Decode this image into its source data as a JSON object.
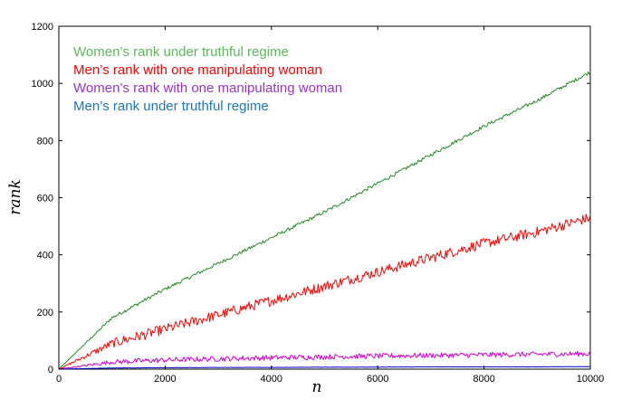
{
  "chart_data": {
    "type": "line",
    "title": "",
    "xlabel": "n",
    "ylabel": "rank",
    "xlim": [
      0,
      10000
    ],
    "ylim": [
      0,
      1200
    ],
    "x_ticks": [
      0,
      2000,
      4000,
      6000,
      8000,
      10000
    ],
    "y_ticks": [
      0,
      200,
      400,
      600,
      800,
      1000,
      1200
    ],
    "grid": false,
    "legend_position": "top-left",
    "series": [
      {
        "name": "Women’s rank under truthful  regime",
        "color": "#228b22",
        "legend_color": "#5cb85c",
        "noise": 6,
        "x": [
          0,
          1000,
          2000,
          3000,
          4000,
          5000,
          6000,
          7000,
          8000,
          9000,
          10000
        ],
        "values": [
          0,
          180,
          280,
          370,
          460,
          550,
          650,
          750,
          850,
          940,
          1040
        ]
      },
      {
        "name": "Men’s rank with one manipulating woman",
        "color": "#ff0000",
        "legend_color": "#ff0000",
        "noise": 18,
        "x": [
          0,
          1000,
          2000,
          3000,
          4000,
          5000,
          6000,
          7000,
          8000,
          9000,
          10000
        ],
        "values": [
          0,
          90,
          140,
          190,
          240,
          290,
          340,
          390,
          440,
          480,
          530
        ]
      },
      {
        "name": "Women’s rank with one manipulating woman",
        "color": "#cc00cc",
        "legend_color": "#9933cc",
        "noise": 9,
        "x": [
          0,
          1000,
          2000,
          3000,
          4000,
          5000,
          6000,
          7000,
          8000,
          9000,
          10000
        ],
        "values": [
          0,
          25,
          32,
          36,
          40,
          43,
          46,
          48,
          50,
          52,
          54
        ]
      },
      {
        "name": "Men’s rank under truthful  regime",
        "color": "#0000cc",
        "legend_color": "#1f77b4",
        "noise": 0.6,
        "x": [
          0,
          1000,
          2000,
          3000,
          4000,
          5000,
          6000,
          7000,
          8000,
          9000,
          10000
        ],
        "values": [
          0,
          4,
          5,
          6,
          6,
          7,
          7,
          8,
          8,
          8,
          9
        ]
      }
    ]
  }
}
